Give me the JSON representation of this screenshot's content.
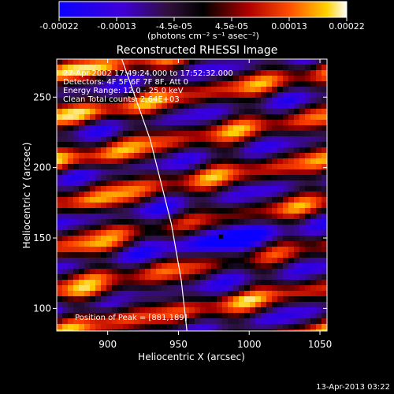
{
  "chart_data": {
    "type": "heatmap",
    "title": "Reconstructed RHESSI Image",
    "xlabel": "Heliocentric X (arcsec)",
    "ylabel": "Heliocentric Y (arcsec)",
    "x_ticks": [
      "900",
      "950",
      "1000",
      "1050"
    ],
    "y_ticks": [
      "100",
      "150",
      "200",
      "250"
    ],
    "xlim": [
      864,
      1055
    ],
    "ylim": [
      84,
      277
    ],
    "colorbar": {
      "ticks": [
        "-0.00022",
        "-0.00013",
        "-4.5e-05",
        "4.5e-05",
        "0.00013",
        "0.00022"
      ],
      "range": [
        -0.00022,
        0.00022
      ],
      "units_label": "(photons cm⁻² s⁻¹ asec⁻²)"
    },
    "annotations": [
      "27-Apr-2002 17:49:24.000 to 17:52:32.000",
      "Detectors: 4F 5F 6F 7F 8F, Att 0",
      "Energy Range: 12.0 - 25.0 keV",
      "Clean     Total counts: 2.64E+03"
    ],
    "peak_label": "Position of Peak = [881,189]",
    "marker_point": [
      980,
      151
    ],
    "limb_curve": [
      [
        910,
        277
      ],
      [
        930,
        220
      ],
      [
        945,
        160
      ],
      [
        952,
        120
      ],
      [
        956,
        84
      ]
    ],
    "footer_date": "13-Apr-2013 03:22"
  }
}
